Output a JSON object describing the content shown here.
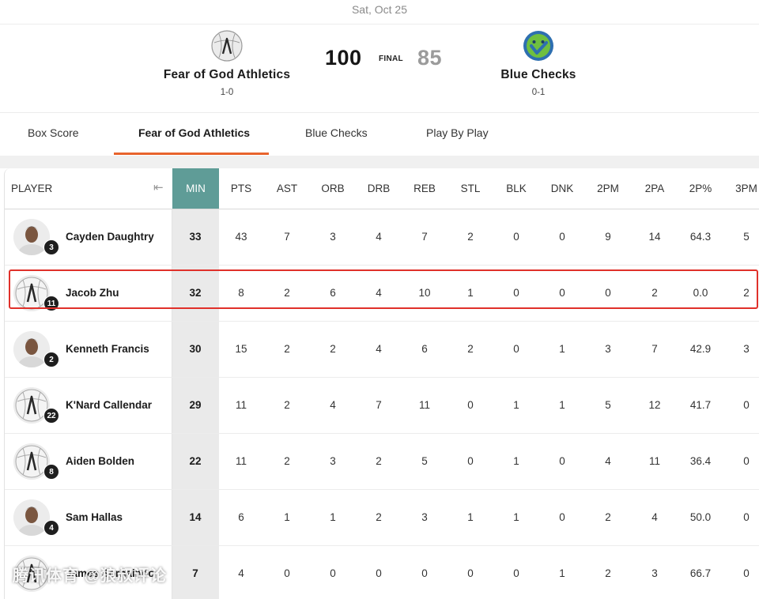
{
  "game": {
    "date": "Sat, Oct 25",
    "status": "FINAL",
    "home": {
      "name": "Fear of God Athletics",
      "record": "1-0",
      "score": "100",
      "logo_icon": "fear-of-god-logo-icon"
    },
    "away": {
      "name": "Blue Checks",
      "record": "0-1",
      "score": "85",
      "logo_icon": "blue-checks-smiley-logo-icon",
      "logo_color": "#2e6fb0",
      "logo_accent": "#6fbf3f"
    }
  },
  "tabs": [
    {
      "label": "Box Score"
    },
    {
      "label": "Fear of God Athletics",
      "active": true
    },
    {
      "label": "Blue Checks"
    },
    {
      "label": "Play By Play"
    }
  ],
  "colors": {
    "accent": "#e8632c",
    "min_header": "#5f9c97",
    "highlight": "#e0302a"
  },
  "table": {
    "player_header": "PLAYER",
    "columns": [
      "MIN",
      "PTS",
      "AST",
      "ORB",
      "DRB",
      "REB",
      "STL",
      "BLK",
      "DNK",
      "2PM",
      "2PA",
      "2P%",
      "3PM"
    ],
    "rows": [
      {
        "name": "Cayden Daughtry",
        "number": "3",
        "photo": true,
        "stats": [
          "33",
          "43",
          "7",
          "3",
          "4",
          "7",
          "2",
          "0",
          "0",
          "9",
          "14",
          "64.3",
          "5"
        ]
      },
      {
        "name": "Jacob Zhu",
        "number": "11",
        "photo": false,
        "highlighted": true,
        "stats": [
          "32",
          "8",
          "2",
          "6",
          "4",
          "10",
          "1",
          "0",
          "0",
          "0",
          "2",
          "0.0",
          "2"
        ]
      },
      {
        "name": "Kenneth Francis",
        "number": "2",
        "photo": true,
        "stats": [
          "30",
          "15",
          "2",
          "2",
          "4",
          "6",
          "2",
          "0",
          "1",
          "3",
          "7",
          "42.9",
          "3"
        ]
      },
      {
        "name": "K'Nard Callendar",
        "number": "22",
        "photo": false,
        "stats": [
          "29",
          "11",
          "2",
          "4",
          "7",
          "11",
          "0",
          "1",
          "1",
          "5",
          "12",
          "41.7",
          "0"
        ]
      },
      {
        "name": "Aiden Bolden",
        "number": "8",
        "photo": false,
        "stats": [
          "22",
          "11",
          "2",
          "3",
          "2",
          "5",
          "0",
          "1",
          "0",
          "4",
          "11",
          "36.4",
          "0"
        ]
      },
      {
        "name": "Sam Hallas",
        "number": "4",
        "photo": true,
        "stats": [
          "14",
          "6",
          "1",
          "1",
          "2",
          "3",
          "1",
          "1",
          "0",
          "2",
          "4",
          "50.0",
          "0"
        ]
      },
      {
        "name": "James Sorhaindo",
        "number": "",
        "photo": false,
        "stats": [
          "7",
          "4",
          "0",
          "0",
          "0",
          "0",
          "0",
          "0",
          "1",
          "2",
          "3",
          "66.7",
          "0"
        ]
      }
    ]
  },
  "watermark": "腾讯体育 @狼叔评论"
}
